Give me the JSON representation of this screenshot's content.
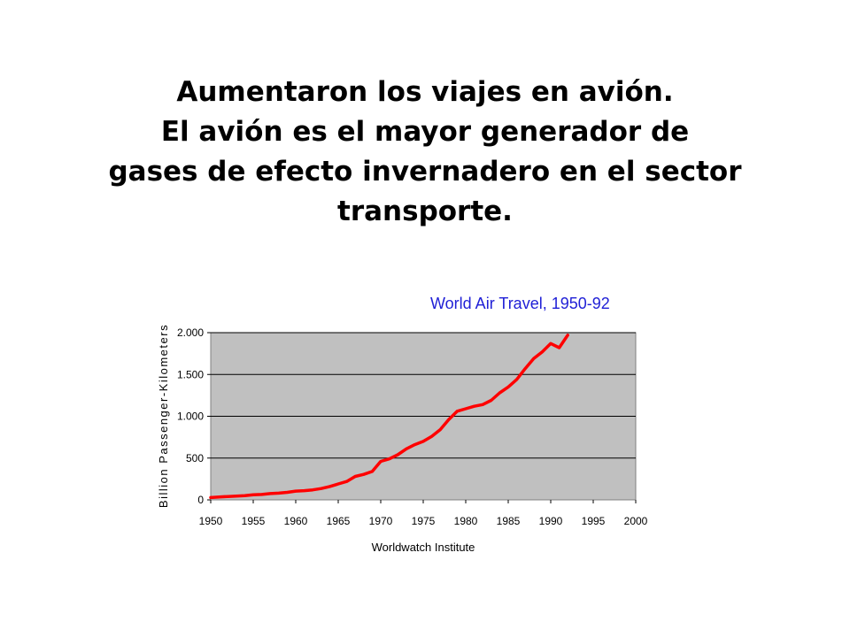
{
  "slide": {
    "title_lines": [
      "Aumentaron los viajes en avión.",
      "El avión es el mayor generador de",
      "gases de efecto invernadero en el sector",
      "transporte."
    ]
  },
  "chart_data": {
    "type": "line",
    "title": "World Air Travel, 1950-92",
    "ylabel": "Billion Passenger-Kilometers",
    "source": "Worldwatch Institute",
    "xlim": [
      1950,
      2000
    ],
    "ylim": [
      0,
      2000
    ],
    "x_ticks": [
      1950,
      1955,
      1960,
      1965,
      1970,
      1975,
      1980,
      1985,
      1990,
      1995,
      2000
    ],
    "y_ticks": [
      0,
      500,
      1000,
      1500,
      2000
    ],
    "x_tick_labels": [
      "1950",
      "1955",
      "1960",
      "1965",
      "1970",
      "1975",
      "1980",
      "1985",
      "1990",
      "1995",
      "2000"
    ],
    "y_tick_labels": [
      "0",
      "500",
      "1.000",
      "1.500",
      "2.000"
    ],
    "grid": "horizontal",
    "plot_background": "#c0c0c0",
    "series_color": "#ff0000",
    "title_color": "#1f1fd6",
    "series": [
      {
        "x": [
          1950,
          1951,
          1952,
          1953,
          1954,
          1955,
          1956,
          1957,
          1958,
          1959,
          1960,
          1961,
          1962,
          1963,
          1964,
          1965,
          1966,
          1967,
          1968,
          1969,
          1970,
          1971,
          1972,
          1973,
          1974,
          1975,
          1976,
          1977,
          1978,
          1979,
          1980,
          1981,
          1982,
          1983,
          1984,
          1985,
          1986,
          1987,
          1988,
          1989,
          1990,
          1991,
          1992
        ],
        "values": [
          28,
          35,
          40,
          45,
          50,
          60,
          65,
          75,
          80,
          90,
          105,
          110,
          120,
          135,
          160,
          190,
          220,
          280,
          305,
          340,
          460,
          490,
          540,
          610,
          660,
          700,
          760,
          840,
          960,
          1060,
          1090,
          1120,
          1140,
          1190,
          1280,
          1350,
          1440,
          1570,
          1690,
          1770,
          1870,
          1820,
          1970
        ]
      }
    ]
  }
}
